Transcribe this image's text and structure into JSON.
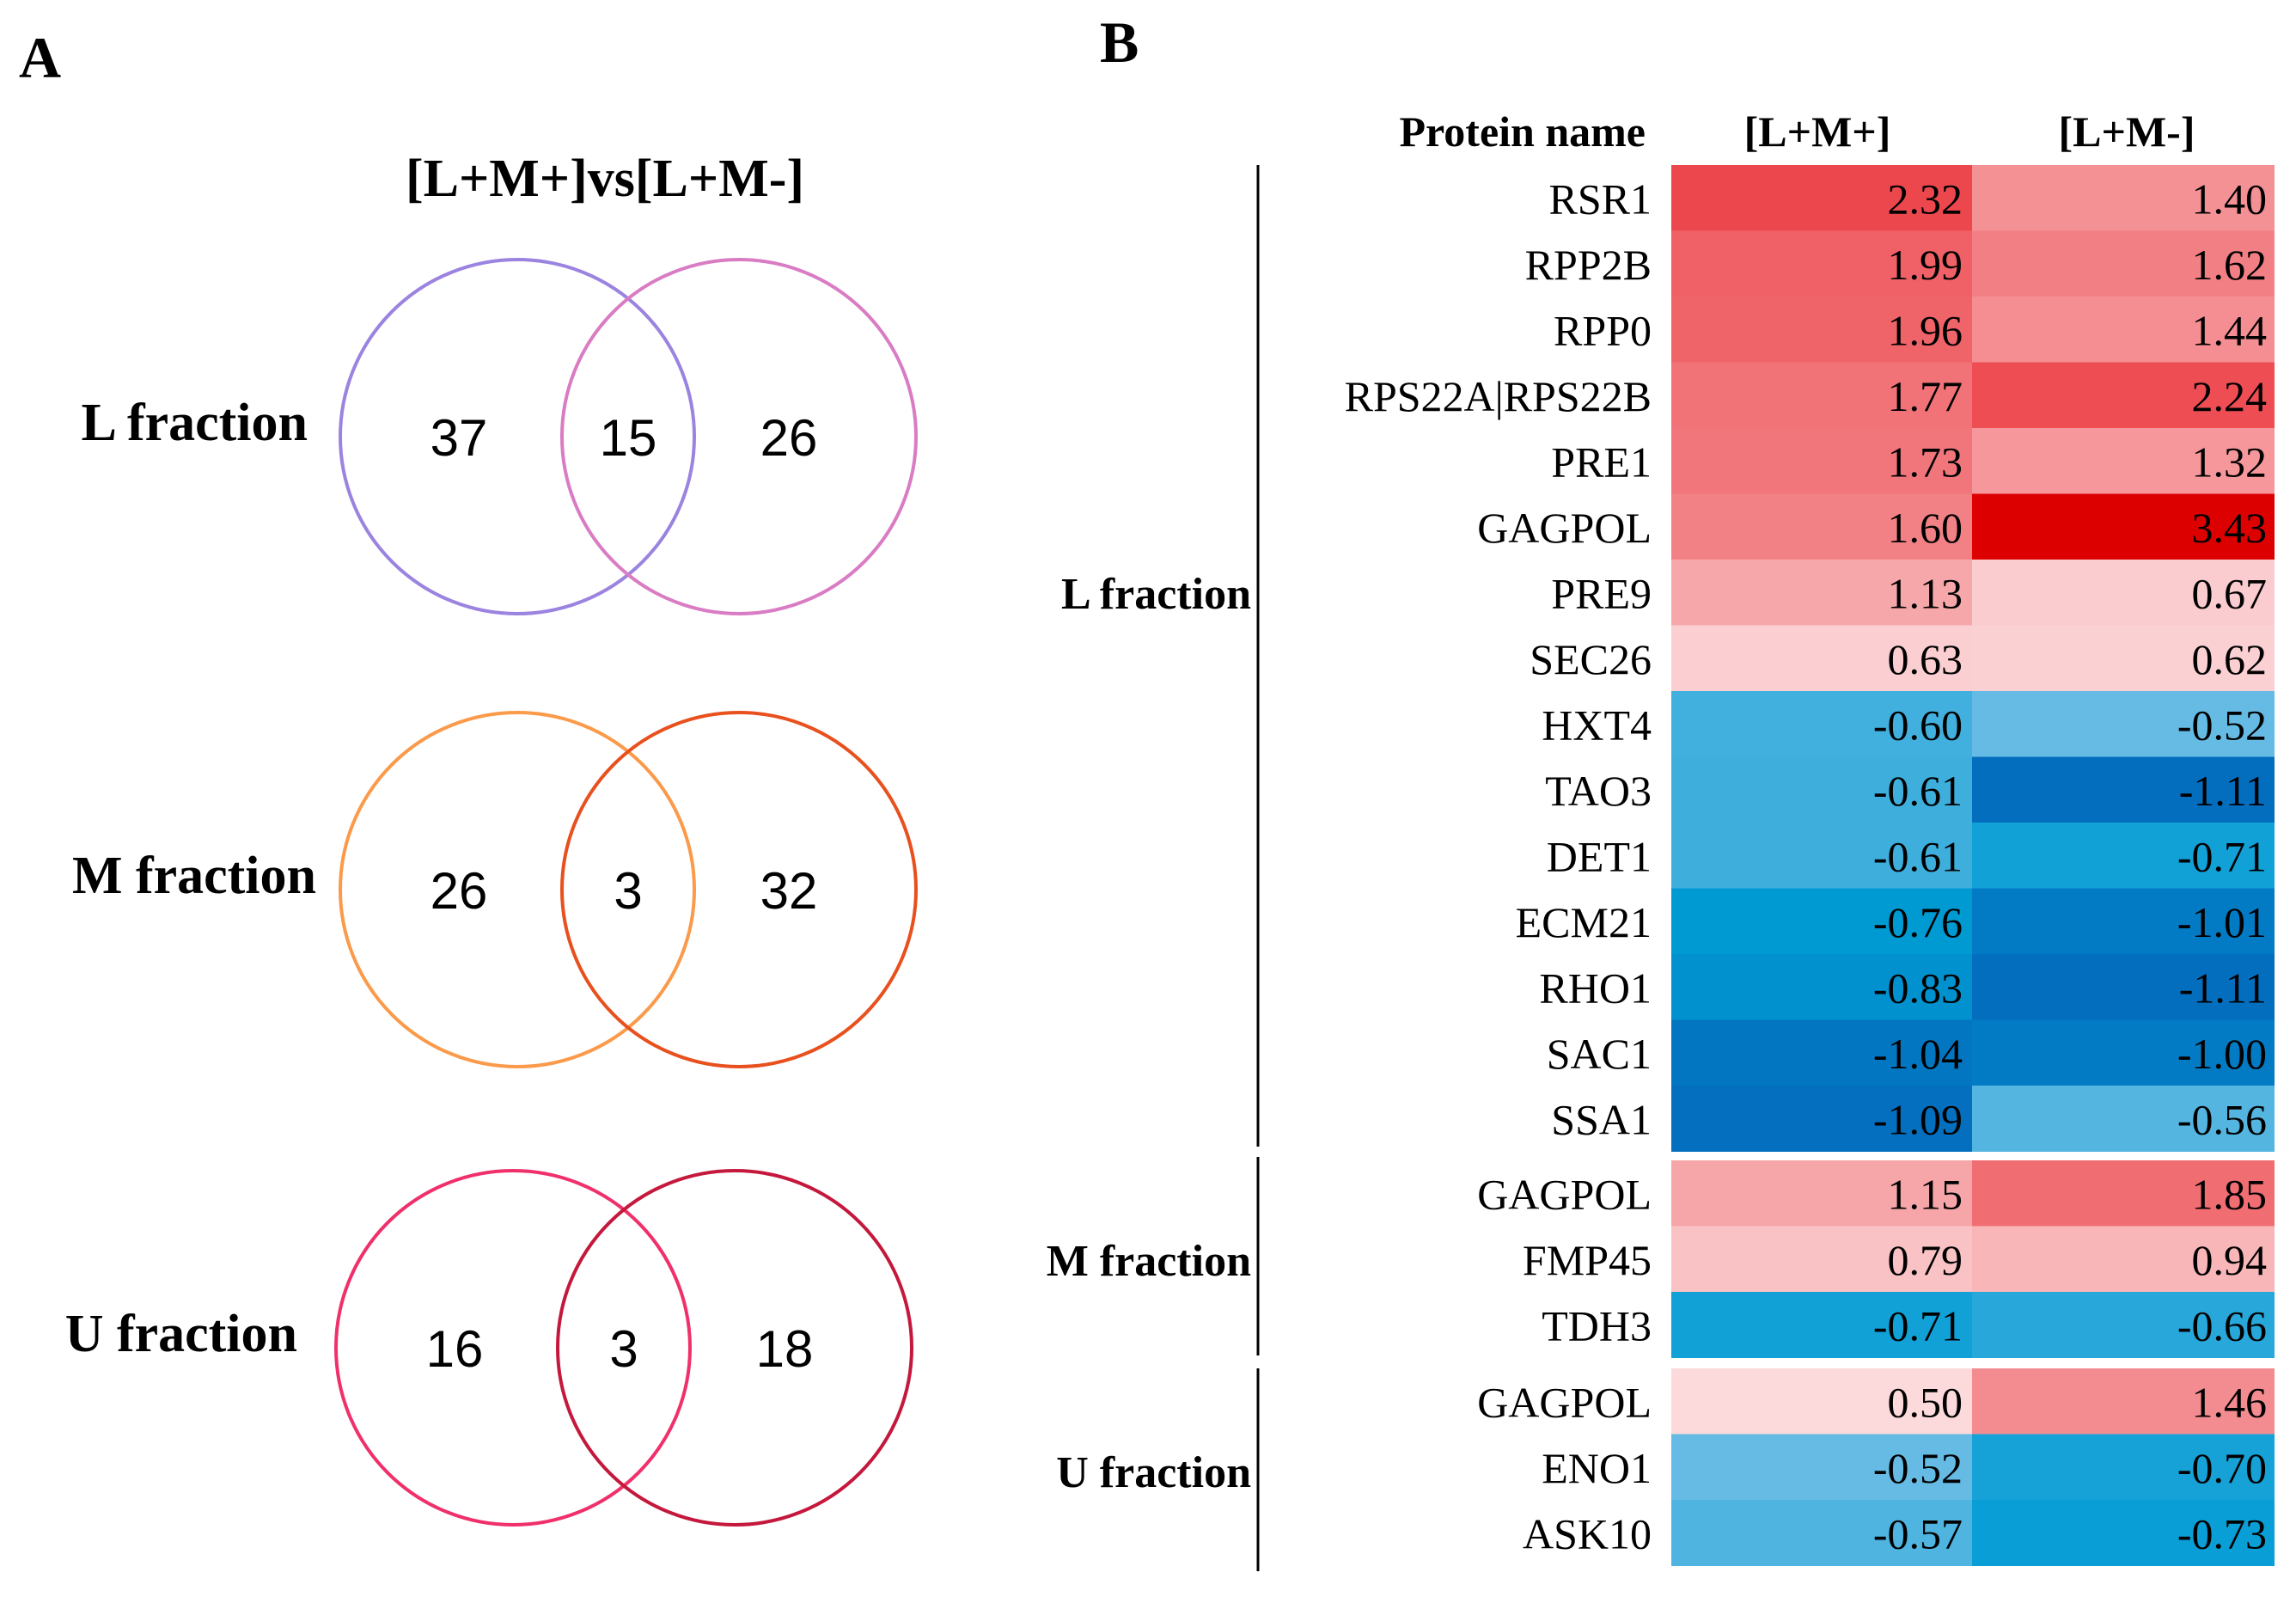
{
  "panel_a": {
    "label": "A",
    "comparison_title": "[L+M+]vs[L+M-]",
    "venns": [
      {
        "row_label": "L fraction",
        "left_only": "37",
        "overlap": "15",
        "right_only": "26",
        "left_color": "#9b83e0",
        "right_color": "#d97cc4"
      },
      {
        "row_label": "M fraction",
        "left_only": "26",
        "overlap": "3",
        "right_only": "32",
        "left_color": "#fa9a4a",
        "right_color": "#e8501e"
      },
      {
        "row_label": "U fraction",
        "left_only": "16",
        "overlap": "3",
        "right_only": "18",
        "left_color": "#f0306a",
        "right_color": "#c4183c"
      }
    ]
  },
  "panel_b": {
    "label": "B",
    "headers": {
      "protein": "Protein name",
      "col1": "[L+M+]",
      "col2": "[L+M-]"
    },
    "groups": [
      {
        "name": "L fraction",
        "rows": [
          {
            "protein": "RSR1",
            "v1": "2.32",
            "v2": "1.40"
          },
          {
            "protein": "RPP2B",
            "v1": "1.99",
            "v2": "1.62"
          },
          {
            "protein": "RPP0",
            "v1": "1.96",
            "v2": "1.44"
          },
          {
            "protein": "RPS22A|RPS22B",
            "v1": "1.77",
            "v2": "2.24"
          },
          {
            "protein": "PRE1",
            "v1": "1.73",
            "v2": "1.32"
          },
          {
            "protein": "GAGPOL",
            "v1": "1.60",
            "v2": "3.43"
          },
          {
            "protein": "PRE9",
            "v1": "1.13",
            "v2": "0.67"
          },
          {
            "protein": "SEC26",
            "v1": "0.63",
            "v2": "0.62"
          },
          {
            "protein": "HXT4",
            "v1": "-0.60",
            "v2": "-0.52"
          },
          {
            "protein": "TAO3",
            "v1": "-0.61",
            "v2": "-1.11"
          },
          {
            "protein": "DET1",
            "v1": "-0.61",
            "v2": "-0.71"
          },
          {
            "protein": "ECM21",
            "v1": "-0.76",
            "v2": "-1.01"
          },
          {
            "protein": "RHO1",
            "v1": "-0.83",
            "v2": "-1.11"
          },
          {
            "protein": "SAC1",
            "v1": "-1.04",
            "v2": "-1.00"
          },
          {
            "protein": "SSA1",
            "v1": "-1.09",
            "v2": "-0.56"
          }
        ]
      },
      {
        "name": "M fraction",
        "rows": [
          {
            "protein": "GAGPOL",
            "v1": "1.15",
            "v2": "1.85"
          },
          {
            "protein": "FMP45",
            "v1": "0.79",
            "v2": "0.94"
          },
          {
            "protein": "TDH3",
            "v1": "-0.71",
            "v2": "-0.66"
          }
        ]
      },
      {
        "name": "U fraction",
        "rows": [
          {
            "protein": "GAGPOL",
            "v1": "0.50",
            "v2": "1.46"
          },
          {
            "protein": "ENO1",
            "v1": "-0.52",
            "v2": "-0.70"
          },
          {
            "protein": "ASK10",
            "v1": "-0.57",
            "v2": "-0.73"
          }
        ]
      }
    ]
  }
}
